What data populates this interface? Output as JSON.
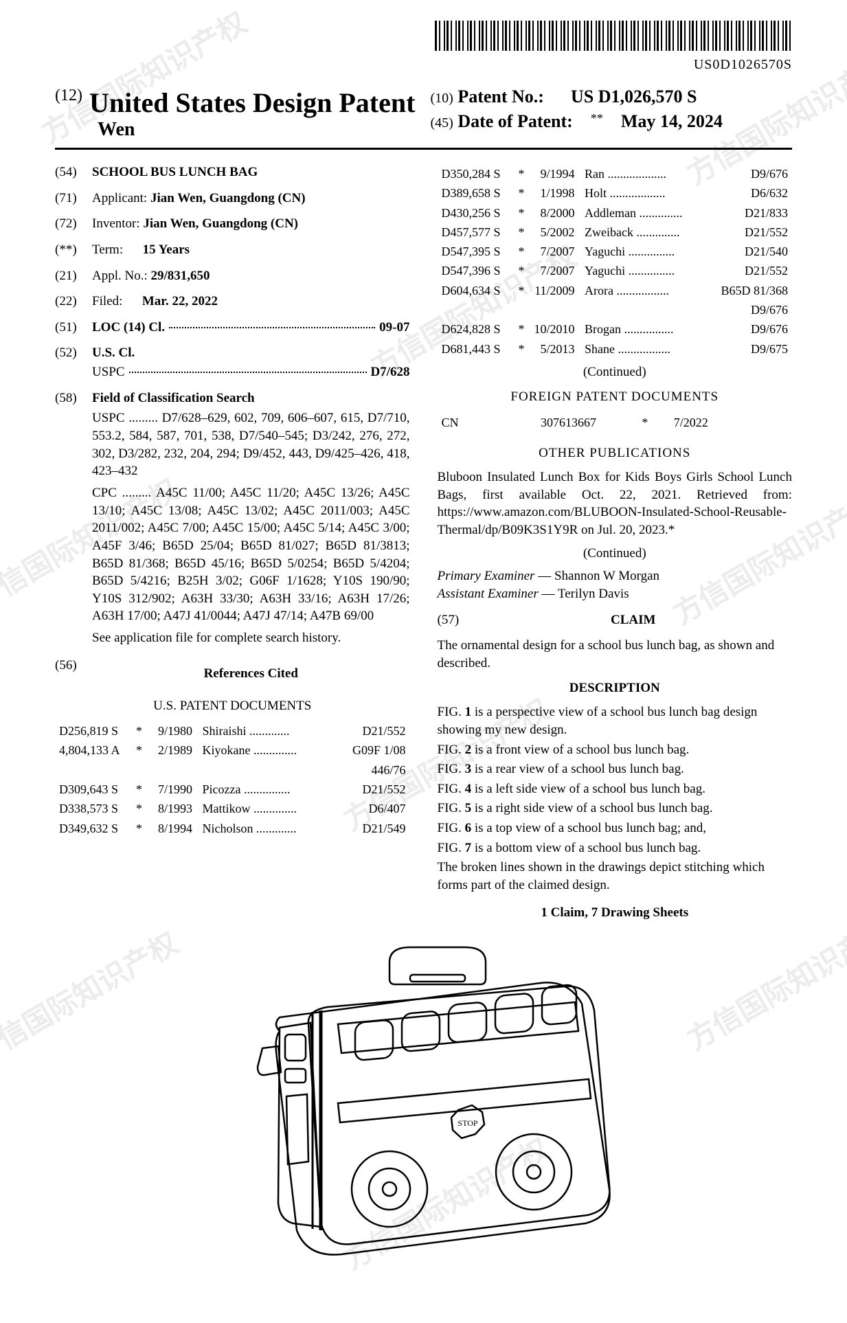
{
  "barcode_text": "US0D1026570S",
  "header": {
    "doc_type_num": "(12)",
    "doc_type": "United States Design Patent",
    "author": "Wen",
    "patent_no_num": "(10)",
    "patent_no_label": "Patent No.:",
    "patent_no_value": "US D1,026,570 S",
    "date_num": "(45)",
    "date_label": "Date of Patent:",
    "date_stars": "**",
    "date_value": "May 14, 2024"
  },
  "left": {
    "title_num": "(54)",
    "title": "SCHOOL BUS LUNCH BAG",
    "applicant_num": "(71)",
    "applicant_label": "Applicant:",
    "applicant_value": "Jian Wen, Guangdong (CN)",
    "inventor_num": "(72)",
    "inventor_label": "Inventor:",
    "inventor_value": "Jian Wen, Guangdong (CN)",
    "term_num": "(**)",
    "term_label": "Term:",
    "term_value": "15 Years",
    "appl_num": "(21)",
    "appl_label": "Appl. No.:",
    "appl_value": "29/831,650",
    "filed_num": "(22)",
    "filed_label": "Filed:",
    "filed_value": "Mar. 22, 2022",
    "loc_num": "(51)",
    "loc_label": "LOC (14) Cl.",
    "loc_value": "09-07",
    "uscl_num": "(52)",
    "uscl_label": "U.S. Cl.",
    "uspc_label": "USPC",
    "uspc_value": "D7/628",
    "field_num": "(58)",
    "field_label": "Field of Classification Search",
    "field_uspc": "USPC ......... D7/628–629, 602, 709, 606–607, 615, D7/710, 553.2, 584, 587, 701, 538, D7/540–545; D3/242, 276, 272, 302, D3/282, 232, 204, 294; D9/452, 443, D9/425–426, 418, 423–432",
    "field_cpc": "CPC ......... A45C 11/00; A45C 11/20; A45C 13/26; A45C 13/10; A45C 13/08; A45C 13/02; A45C 2011/003; A45C 2011/002; A45C 7/00; A45C 15/00; A45C 5/14; A45C 3/00; A45F 3/46; B65D 25/04; B65D 81/027; B65D 81/3813; B65D 81/368; B65D 45/16; B65D 5/0254; B65D 5/4204; B65D 5/4216; B25H 3/02; G06F 1/1628; Y10S 190/90; Y10S 312/902; A63H 33/30; A63H 33/16; A63H 17/26; A63H 17/00; A47J 41/0044; A47J 47/14; A47B 69/00",
    "field_note": "See application file for complete search history.",
    "refs_num": "(56)",
    "refs_label": "References Cited",
    "refs_sub": "U.S. PATENT DOCUMENTS",
    "refs_left": [
      {
        "id": "D256,819 S",
        "m": "*",
        "d": "9/1980",
        "n": "Shiraishi",
        "c": "D21/552"
      },
      {
        "id": "4,804,133 A",
        "m": "*",
        "d": "2/1989",
        "n": "Kiyokane",
        "c": "G09F 1/08"
      },
      {
        "id": "",
        "m": "",
        "d": "",
        "n": "",
        "c": "446/76"
      },
      {
        "id": "D309,643 S",
        "m": "*",
        "d": "7/1990",
        "n": "Picozza",
        "c": "D21/552"
      },
      {
        "id": "D338,573 S",
        "m": "*",
        "d": "8/1993",
        "n": "Mattikow",
        "c": "D6/407"
      },
      {
        "id": "D349,632 S",
        "m": "*",
        "d": "8/1994",
        "n": "Nicholson",
        "c": "D21/549"
      }
    ]
  },
  "right": {
    "refs_right": [
      {
        "id": "D350,284 S",
        "m": "*",
        "d": "9/1994",
        "n": "Ran",
        "c": "D9/676"
      },
      {
        "id": "D389,658 S",
        "m": "*",
        "d": "1/1998",
        "n": "Holt",
        "c": "D6/632"
      },
      {
        "id": "D430,256 S",
        "m": "*",
        "d": "8/2000",
        "n": "Addleman",
        "c": "D21/833"
      },
      {
        "id": "D457,577 S",
        "m": "*",
        "d": "5/2002",
        "n": "Zweiback",
        "c": "D21/552"
      },
      {
        "id": "D547,395 S",
        "m": "*",
        "d": "7/2007",
        "n": "Yaguchi",
        "c": "D21/540"
      },
      {
        "id": "D547,396 S",
        "m": "*",
        "d": "7/2007",
        "n": "Yaguchi",
        "c": "D21/552"
      },
      {
        "id": "D604,634 S",
        "m": "*",
        "d": "11/2009",
        "n": "Arora",
        "c": "B65D 81/368"
      },
      {
        "id": "",
        "m": "",
        "d": "",
        "n": "",
        "c": "D9/676"
      },
      {
        "id": "D624,828 S",
        "m": "*",
        "d": "10/2010",
        "n": "Brogan",
        "c": "D9/676"
      },
      {
        "id": "D681,443 S",
        "m": "*",
        "d": "5/2013",
        "n": "Shane",
        "c": "D9/675"
      }
    ],
    "continued1": "(Continued)",
    "foreign_title": "FOREIGN PATENT DOCUMENTS",
    "foreign_cc": "CN",
    "foreign_id": "307613667",
    "foreign_m": "*",
    "foreign_d": "7/2022",
    "other_title": "OTHER PUBLICATIONS",
    "other_text": "Bluboon Insulated Lunch Box for Kids Boys Girls School Lunch Bags, first available Oct. 22, 2021. Retrieved from: https://www.amazon.com/BLUBOON-Insulated-School-Reusable-Thermal/dp/B09K3S1Y9R on Jul. 20, 2023.*",
    "continued2": "(Continued)",
    "primary_label": "Primary Examiner",
    "primary_value": "Shannon W Morgan",
    "assistant_label": "Assistant Examiner",
    "assistant_value": "Terilyn Davis",
    "claim_num": "(57)",
    "claim_label": "CLAIM",
    "claim_text": "The ornamental design for a school bus lunch bag, as shown and described.",
    "desc_label": "DESCRIPTION",
    "desc": [
      "FIG. 1 is a perspective view of a school bus lunch bag design showing my new design.",
      "FIG. 2 is a front view of a school bus lunch bag.",
      "FIG. 3 is a rear view of a school bus lunch bag.",
      "FIG. 4 is a left side view of a school bus lunch bag.",
      "FIG. 5 is a right side view of a school bus lunch bag.",
      "FIG. 6 is a top view of a school bus lunch bag; and,",
      "FIG. 7 is a bottom view of a school bus lunch bag.",
      "The broken lines shown in the drawings depict stitching which forms part of the claimed design."
    ],
    "footer": "1 Claim, 7 Drawing Sheets"
  },
  "watermark_text": "方信国际知识产权"
}
